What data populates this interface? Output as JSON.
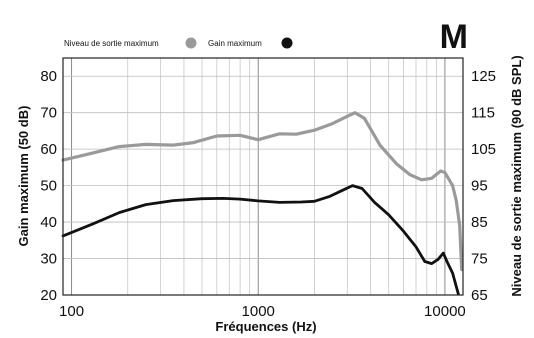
{
  "chart_data": {
    "type": "line",
    "badge": "M",
    "xlabel": "Fréquences (Hz)",
    "ylabel": "Gain maximum (50 dB)",
    "ylabel_right": "Niveau de sortie maximum (90 dB SPL)",
    "xscale": "log",
    "xlim": [
      90,
      12500
    ],
    "ylim": [
      20,
      85
    ],
    "ylim_right": [
      65,
      130
    ],
    "x_ticks": [
      100,
      1000,
      10000
    ],
    "x_tick_labels": [
      "100",
      "1000",
      "10000"
    ],
    "y_ticks": [
      20,
      30,
      40,
      50,
      60,
      70,
      80
    ],
    "y_tick_labels": [
      "20",
      "30",
      "40",
      "50",
      "60",
      "70",
      "80"
    ],
    "y_right_ticks": [
      65,
      75,
      85,
      95,
      105,
      115,
      125
    ],
    "y_right_tick_labels": [
      "65",
      "75",
      "85",
      "95",
      "105",
      "115",
      "125"
    ],
    "grid": true,
    "legend_position": "top-left",
    "series": [
      {
        "name": "Niveau de sortie maximum",
        "axis": "right",
        "color": "#9a9a9a",
        "points": [
          [
            90,
            102
          ],
          [
            120,
            103.5
          ],
          [
            180,
            105.7
          ],
          [
            250,
            106.3
          ],
          [
            350,
            106.1
          ],
          [
            450,
            106.8
          ],
          [
            600,
            108.6
          ],
          [
            800,
            108.8
          ],
          [
            1000,
            107.6
          ],
          [
            1300,
            109.2
          ],
          [
            1600,
            109.1
          ],
          [
            2000,
            110.2
          ],
          [
            2500,
            112
          ],
          [
            3000,
            114
          ],
          [
            3300,
            115
          ],
          [
            3700,
            113.5
          ],
          [
            4500,
            106
          ],
          [
            5500,
            101
          ],
          [
            6500,
            98
          ],
          [
            7500,
            96.6
          ],
          [
            8500,
            97
          ],
          [
            9500,
            99
          ],
          [
            10000,
            98.6
          ],
          [
            11000,
            95
          ],
          [
            11500,
            91
          ],
          [
            12000,
            84
          ],
          [
            12300,
            72
          ]
        ]
      },
      {
        "name": "Gain maximum",
        "axis": "left",
        "color": "#111111",
        "points": [
          [
            90,
            36.2
          ],
          [
            130,
            39.5
          ],
          [
            180,
            42.6
          ],
          [
            250,
            44.8
          ],
          [
            350,
            45.9
          ],
          [
            500,
            46.4
          ],
          [
            650,
            46.5
          ],
          [
            800,
            46.3
          ],
          [
            1000,
            45.8
          ],
          [
            1300,
            45.4
          ],
          [
            1700,
            45.5
          ],
          [
            2000,
            45.7
          ],
          [
            2400,
            47
          ],
          [
            2800,
            48.6
          ],
          [
            3200,
            50
          ],
          [
            3600,
            49.2
          ],
          [
            4200,
            45.4
          ],
          [
            5000,
            42
          ],
          [
            6000,
            37.5
          ],
          [
            7000,
            33.2
          ],
          [
            7800,
            29.2
          ],
          [
            8500,
            28.6
          ],
          [
            9200,
            29.8
          ],
          [
            9800,
            31.5
          ],
          [
            10300,
            29
          ],
          [
            11000,
            26
          ],
          [
            11800,
            20.3
          ]
        ]
      }
    ]
  }
}
